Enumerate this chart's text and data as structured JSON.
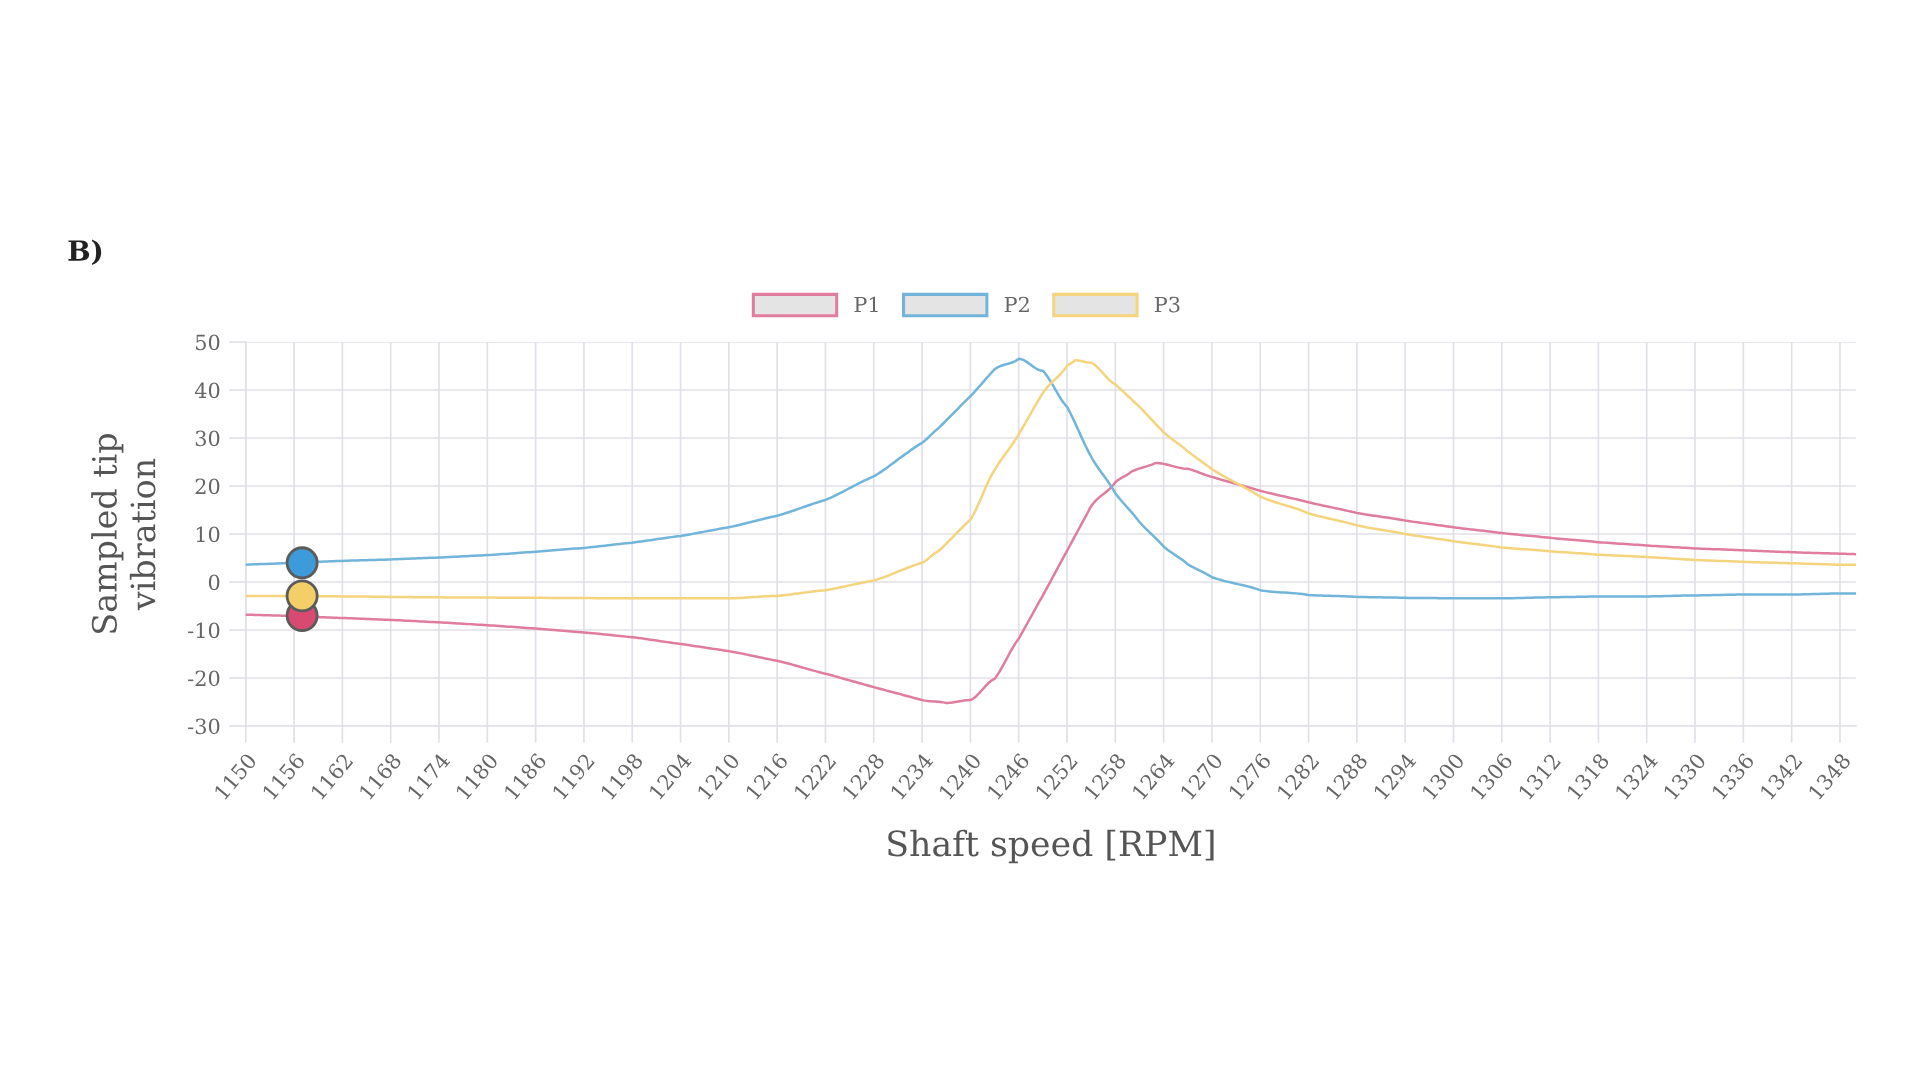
{
  "chart_data": {
    "type": "line",
    "title": "B)",
    "xlabel": "Shaft speed [RPM]",
    "ylabel": "Sampled tip\nvibration",
    "xlim": [
      1150,
      1350
    ],
    "xticks": [
      1150,
      1156,
      1162,
      1168,
      1174,
      1180,
      1186,
      1192,
      1198,
      1204,
      1210,
      1216,
      1222,
      1228,
      1234,
      1240,
      1246,
      1252,
      1258,
      1264,
      1270,
      1276,
      1282,
      1288,
      1294,
      1300,
      1306,
      1312,
      1318,
      1324,
      1330,
      1336,
      1342,
      1348
    ],
    "ylim": [
      -30,
      50
    ],
    "yticks": [
      -30,
      -20,
      -10,
      0,
      10,
      20,
      30,
      40,
      50
    ],
    "grid": true,
    "legend": "top",
    "series": [
      {
        "name": "P1",
        "color": "#e07d9e",
        "x": [
          1150,
          1156,
          1162,
          1168,
          1174,
          1180,
          1186,
          1192,
          1198,
          1204,
          1210,
          1216,
          1222,
          1228,
          1234,
          1237,
          1240,
          1243,
          1246,
          1249,
          1252,
          1255,
          1258,
          1260,
          1263,
          1267,
          1270,
          1276,
          1282,
          1288,
          1294,
          1300,
          1306,
          1312,
          1318,
          1324,
          1330,
          1336,
          1342,
          1348,
          1350
        ],
        "values": [
          -6.8,
          -7.1,
          -7.5,
          -7.9,
          -8.4,
          -9.0,
          -9.7,
          -10.5,
          -11.5,
          -12.9,
          -14.4,
          -16.4,
          -19.1,
          -21.9,
          -24.6,
          -25.2,
          -24.6,
          -20.2,
          -11.8,
          -2.8,
          6.5,
          15.8,
          20.8,
          23.0,
          24.8,
          23.6,
          21.9,
          19.0,
          16.6,
          14.4,
          12.8,
          11.4,
          10.2,
          9.2,
          8.3,
          7.6,
          7.0,
          6.6,
          6.2,
          5.9,
          5.8
        ]
      },
      {
        "name": "P2",
        "color": "#72b5da",
        "x": [
          1150,
          1156,
          1162,
          1168,
          1174,
          1180,
          1186,
          1192,
          1198,
          1204,
          1210,
          1216,
          1222,
          1228,
          1234,
          1236,
          1240,
          1243,
          1246,
          1249,
          1252,
          1255,
          1258,
          1261,
          1264,
          1267,
          1270,
          1276,
          1282,
          1288,
          1294,
          1300,
          1306,
          1312,
          1318,
          1324,
          1330,
          1336,
          1342,
          1348,
          1350
        ],
        "values": [
          3.6,
          4.0,
          4.4,
          4.7,
          5.1,
          5.6,
          6.3,
          7.1,
          8.2,
          9.6,
          11.4,
          13.8,
          17.1,
          22.0,
          29.0,
          32.0,
          38.7,
          44.3,
          46.5,
          44.0,
          36.5,
          26.1,
          18.5,
          12.5,
          7.4,
          3.7,
          1.0,
          -1.7,
          -2.7,
          -3.1,
          -3.3,
          -3.4,
          -3.4,
          -3.2,
          -3.0,
          -3.0,
          -2.8,
          -2.6,
          -2.6,
          -2.4,
          -2.4
        ]
      },
      {
        "name": "P3",
        "color": "#f4d47c",
        "x": [
          1150,
          1162,
          1174,
          1186,
          1198,
          1210,
          1216,
          1222,
          1228,
          1234,
          1236,
          1240,
          1243,
          1246,
          1249,
          1252,
          1253,
          1255,
          1258,
          1261,
          1264,
          1267,
          1270,
          1276,
          1282,
          1288,
          1294,
          1300,
          1306,
          1312,
          1318,
          1324,
          1330,
          1336,
          1342,
          1348,
          1350
        ],
        "values": [
          -2.9,
          -3.0,
          -3.2,
          -3.3,
          -3.4,
          -3.4,
          -2.9,
          -1.7,
          0.3,
          4.0,
          6.4,
          13.0,
          23.3,
          30.8,
          39.4,
          45.0,
          46.2,
          45.7,
          41.2,
          36.5,
          31.2,
          27.2,
          23.5,
          17.8,
          14.3,
          11.8,
          10.0,
          8.5,
          7.2,
          6.4,
          5.7,
          5.2,
          4.6,
          4.2,
          3.9,
          3.6,
          3.6
        ]
      },
      {
        "type": "scatter",
        "marker": "circle",
        "x": [
          1157,
          1157,
          1157
        ],
        "values": [
          -7.0,
          -2.9,
          4.0
        ],
        "colors": [
          "#d94a73",
          "#f4cf67",
          "#3c9bd8"
        ]
      }
    ]
  }
}
